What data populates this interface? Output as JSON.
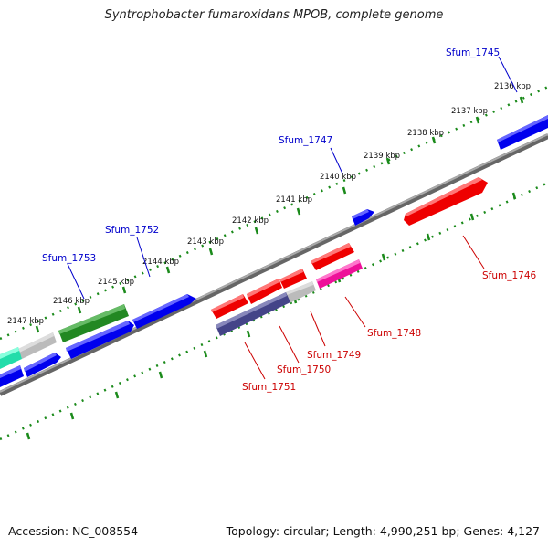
{
  "title": "Syntrophobacter fumaroxidans MPOB, complete genome",
  "footer": {
    "accession": "Accession: NC_008554",
    "summary": "Topology: circular; Length: 4,990,251 bp; Genes: 4,127"
  },
  "ruler": {
    "tick_labels": [
      "2136 kbp",
      "2137 kbp",
      "2138 kbp",
      "2139 kbp",
      "2140 kbp",
      "2141 kbp",
      "2142 kbp",
      "2143 kbp",
      "2144 kbp",
      "2145 kbp",
      "2146 kbp",
      "2147 kbp"
    ]
  },
  "labels": {
    "sfum_1745": "Sfum_1745",
    "sfum_1746": "Sfum_1746",
    "sfum_1747": "Sfum_1747",
    "sfum_1748": "Sfum_1748",
    "sfum_1749": "Sfum_1749",
    "sfum_1750": "Sfum_1750",
    "sfum_1751": "Sfum_1751",
    "sfum_1752": "Sfum_1752",
    "sfum_1753": "Sfum_1753"
  },
  "colors": {
    "forward_label": "#0000cc",
    "reverse_label": "#cc0000",
    "backbone": "#888888",
    "tick": "#1a8a1a",
    "gene_blue": "#0000ee",
    "gene_red": "#ee0000",
    "gene_green": "#228822",
    "gene_gray": "#bbbbbb",
    "gene_navy": "#444488",
    "gene_magenta": "#ee1199",
    "gene_teal": "#22ddaa"
  }
}
